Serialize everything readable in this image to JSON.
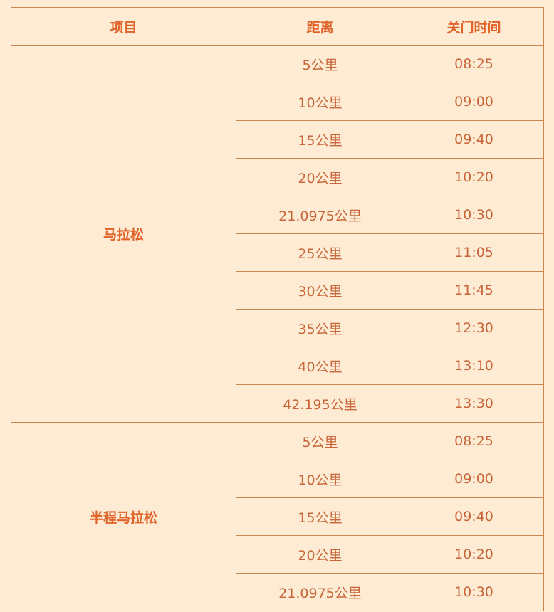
{
  "table": {
    "headers": [
      "项目",
      "距离",
      "关门时间"
    ],
    "groups": [
      {
        "event": "马拉松",
        "rows": [
          {
            "distance": "5公里",
            "cutoff": "08:25"
          },
          {
            "distance": "10公里",
            "cutoff": "09:00"
          },
          {
            "distance": "15公里",
            "cutoff": "09:40"
          },
          {
            "distance": "20公里",
            "cutoff": "10:20"
          },
          {
            "distance": "21.0975公里",
            "cutoff": "10:30"
          },
          {
            "distance": "25公里",
            "cutoff": "11:05"
          },
          {
            "distance": "30公里",
            "cutoff": "11:45"
          },
          {
            "distance": "35公里",
            "cutoff": "12:30"
          },
          {
            "distance": "40公里",
            "cutoff": "13:10"
          },
          {
            "distance": "42.195公里",
            "cutoff": "13:30"
          }
        ]
      },
      {
        "event": "半程马拉松",
        "rows": [
          {
            "distance": "5公里",
            "cutoff": "08:25"
          },
          {
            "distance": "10公里",
            "cutoff": "09:00"
          },
          {
            "distance": "15公里",
            "cutoff": "09:40"
          },
          {
            "distance": "20公里",
            "cutoff": "10:20"
          },
          {
            "distance": "21.0975公里",
            "cutoff": "10:30"
          }
        ]
      }
    ]
  },
  "colors": {
    "background": "#fdebd4",
    "border": "#c98753",
    "header_text": "#e0632a",
    "cell_text": "#c8663a"
  }
}
